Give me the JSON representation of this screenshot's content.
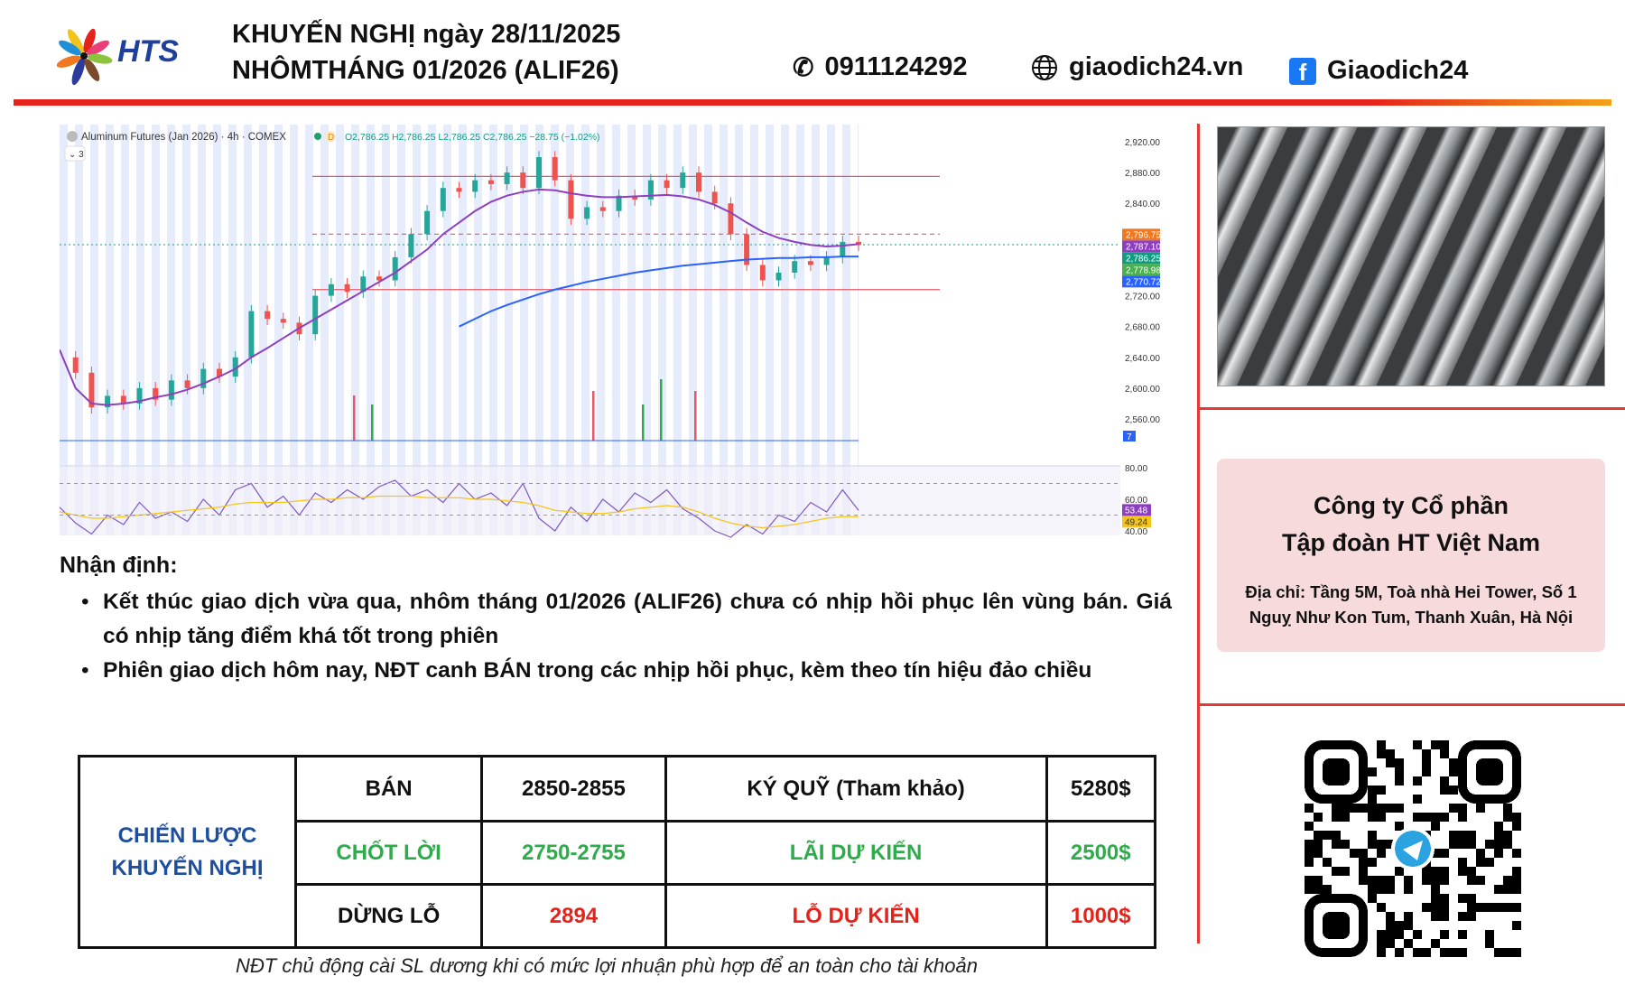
{
  "header": {
    "logo_text": "HTS",
    "title_line1": "KHUYẾN NGHỊ ngày 28/11/2025",
    "title_line2": "NHÔMTHÁNG 01/2026 (ALIF26)",
    "phone": "0911124292",
    "website": "giaodich24.vn",
    "facebook": "Giaodich24",
    "accent": "#e5231b"
  },
  "chart": {
    "symbol_line": "Aluminum Futures (Jan 2026) · 4h · COMEX",
    "flag": "D",
    "ohlc": "O2,786.25 H2,786.25 L2,786.25 C2,786.25 −28.75 (−1.02%)",
    "collapse_label": "3",
    "price_ticks": [
      "2,920.00",
      "2,880.00",
      "2,840.00",
      "2,720.00",
      "2,680.00",
      "2,640.00",
      "2,600.00",
      "2,560.00"
    ],
    "price_tick_values": [
      2920,
      2880,
      2840,
      2720,
      2680,
      2640,
      2600,
      2560
    ],
    "price_labels": [
      {
        "text": "2,796.75",
        "value": 2796.75,
        "color": "#f07820"
      },
      {
        "text": "2,787.10",
        "value": 2787.1,
        "color": "#8e3fbf"
      },
      {
        "text": "2,786.25",
        "value": 2786.25,
        "color": "#129b80"
      },
      {
        "text": "2,778.98",
        "value": 2778.98,
        "color": "#4caf50"
      },
      {
        "text": "2,770.72",
        "value": 2770.72,
        "color": "#2962ff"
      }
    ],
    "volume_badge": "7",
    "rsi_ticks": [
      "80.00",
      "60.00",
      "40.00"
    ],
    "rsi_labels": [
      {
        "text": "53.48",
        "color": "#8e3fbf"
      },
      {
        "text": "49.24",
        "color": "#f5c518"
      }
    ],
    "levels": [
      2875,
      2800,
      2728
    ],
    "ylim": [
      2545,
      2935
    ],
    "close": [
      2640,
      2620,
      2575,
      2590,
      2580,
      2600,
      2585,
      2610,
      2600,
      2625,
      2615,
      2640,
      2700,
      2690,
      2685,
      2670,
      2720,
      2735,
      2725,
      2745,
      2740,
      2770,
      2800,
      2830,
      2860,
      2855,
      2870,
      2865,
      2880,
      2860,
      2900,
      2870,
      2820,
      2835,
      2830,
      2850,
      2845,
      2870,
      2860,
      2880,
      2855,
      2840,
      2800,
      2760,
      2740,
      2750,
      2765,
      2760,
      2770,
      2790,
      2786
    ],
    "ma_purple": [
      2650,
      2600,
      2580,
      2578,
      2580,
      2583,
      2588,
      2592,
      2598,
      2606,
      2615,
      2625,
      2640,
      2652,
      2665,
      2678,
      2690,
      2702,
      2714,
      2726,
      2738,
      2750,
      2765,
      2780,
      2800,
      2815,
      2830,
      2842,
      2850,
      2855,
      2858,
      2857,
      2853,
      2850,
      2848,
      2848,
      2849,
      2850,
      2851,
      2849,
      2845,
      2838,
      2828,
      2815,
      2803,
      2795,
      2790,
      2786,
      2784,
      2785,
      2787
    ],
    "ma_blue_start_index": 25,
    "ma_blue": [
      2680,
      2690,
      2700,
      2708,
      2715,
      2722,
      2728,
      2733,
      2738,
      2742,
      2746,
      2750,
      2753,
      2756,
      2759,
      2761,
      2763,
      2765,
      2767,
      2768,
      2769,
      2769,
      2770,
      2770,
      2771,
      2771
    ],
    "rsi": [
      55,
      45,
      38,
      50,
      44,
      58,
      48,
      52,
      46,
      60,
      50,
      66,
      70,
      55,
      62,
      50,
      64,
      58,
      66,
      60,
      68,
      72,
      62,
      66,
      58,
      70,
      60,
      64,
      56,
      70,
      48,
      40,
      55,
      46,
      60,
      52,
      64,
      58,
      66,
      54,
      48,
      40,
      36,
      44,
      38,
      50,
      46,
      58,
      52,
      66,
      53
    ],
    "rsi_ma": [
      52,
      50,
      48,
      48,
      49,
      50,
      51,
      52,
      53,
      54,
      55,
      57,
      58,
      58,
      58,
      59,
      60,
      60,
      61,
      61,
      62,
      62,
      62,
      61,
      61,
      61,
      60,
      60,
      59,
      58,
      56,
      53,
      52,
      51,
      51,
      52,
      54,
      55,
      56,
      55,
      52,
      48,
      45,
      43,
      42,
      43,
      44,
      46,
      48,
      49,
      49
    ]
  },
  "image_alt": "",
  "company": {
    "name_line1": "Công ty Cổ phần",
    "name_line2": "Tập đoàn HT Việt Nam",
    "address_line1": "Địa chỉ: Tầng 5M, Toà nhà Hei Tower, Số 1",
    "address_line2": "Nguỵ Như Kon Tum, Thanh Xuân, Hà Nội"
  },
  "analysis": {
    "heading": "Nhận định:",
    "bullets": [
      "Kết thúc giao dịch vừa qua, nhôm tháng 01/2026 (ALIF26) chưa có nhịp hồi phục lên vùng bán. Giá có nhịp tăng điểm khá tốt trong phiên",
      "Phiên giao dịch hôm nay, NĐT canh BÁN trong các nhịp hồi phục, kèm theo tín hiệu đảo chiều"
    ]
  },
  "strategy": {
    "label": "CHIẾN LƯỢC KHUYẾN NGHỊ",
    "action": "BÁN",
    "entry": "2850-2855",
    "margin_label": "KÝ QUỸ (Tham khảo)",
    "margin": "5280$",
    "tp_label": "CHỐT LỜI",
    "tp": "2750-2755",
    "profit_label": "LÃI DỰ KIẾN",
    "profit": "2500$",
    "sl_label": "DỪNG LỖ",
    "sl": "2894",
    "loss_label": "LỖ DỰ KIẾN",
    "loss": "1000$"
  },
  "footer_note": "NĐT chủ động cài SL dương khi có mức lợi nhuận phù hợp để an toàn cho tài khoản"
}
